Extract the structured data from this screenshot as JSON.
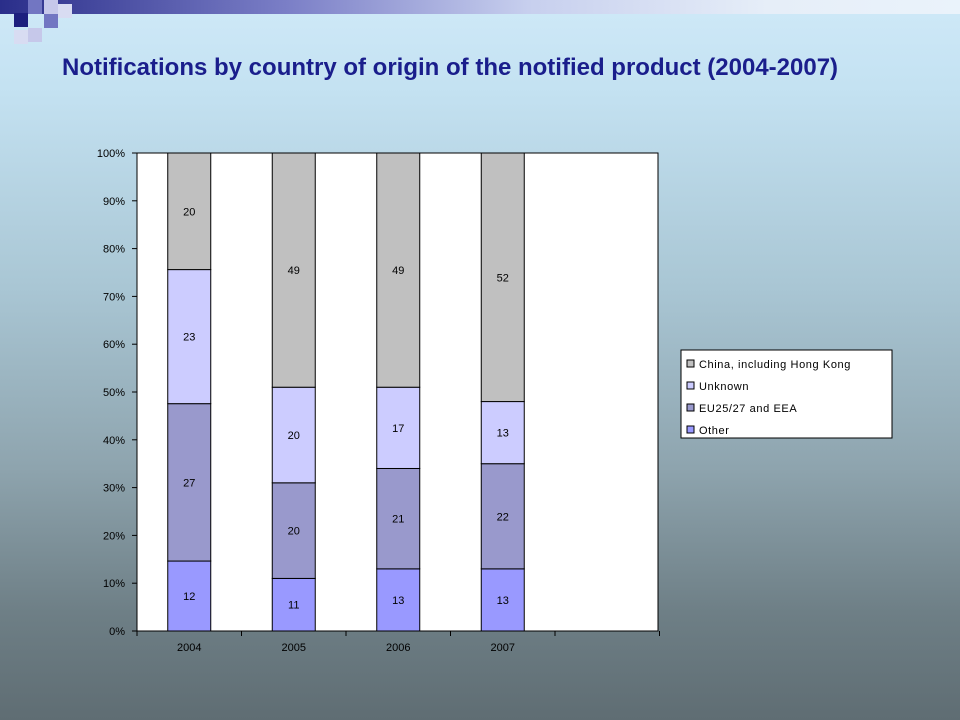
{
  "slide": {
    "title": "Notifications by country of origin of the notified product (2004-2007)"
  },
  "colors": {
    "china": "#c0c0c0",
    "unknown": "#ccccff",
    "eu": "#9999cc",
    "other": "#9999ff",
    "title": "#1a1e8c"
  },
  "chart_data": {
    "type": "bar",
    "stacked": "percent",
    "categories": [
      "2004",
      "2005",
      "2006",
      "2007"
    ],
    "series": [
      {
        "name": "Other",
        "values": [
          12,
          11,
          13,
          13
        ],
        "color": "#9999ff"
      },
      {
        "name": "EU25/27 and EEA",
        "values": [
          27,
          20,
          21,
          22
        ],
        "color": "#9999cc"
      },
      {
        "name": "Unknown",
        "values": [
          23,
          20,
          17,
          13
        ],
        "color": "#ccccff"
      },
      {
        "name": "China, including Hong Kong",
        "values": [
          20,
          49,
          49,
          52
        ],
        "color": "#c0c0c0"
      }
    ],
    "y_tick_labels": [
      "0%",
      "10%",
      "20%",
      "30%",
      "40%",
      "50%",
      "60%",
      "70%",
      "80%",
      "90%",
      "100%"
    ],
    "ylim": [
      0,
      100
    ],
    "legend": [
      "China, including Hong Kong",
      "Unknown",
      "EU25/27 and EEA",
      "Other"
    ],
    "legend_position": "right",
    "grid": false
  }
}
